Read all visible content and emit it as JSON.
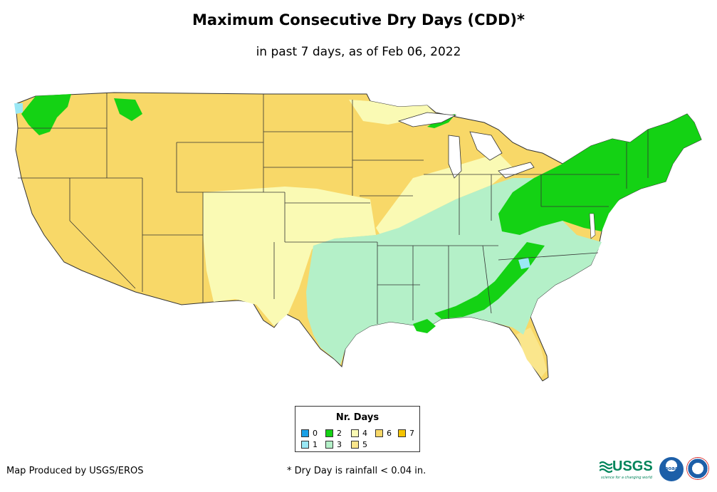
{
  "title": "Maximum Consecutive Dry Days (CDD)*",
  "subtitle": "in past 7 days, as of Feb 06, 2022",
  "legend": {
    "title": "Nr. Days",
    "items": [
      {
        "label": "0",
        "color": "#1aa0e6"
      },
      {
        "label": "1",
        "color": "#9ae8f5"
      },
      {
        "label": "2",
        "color": "#14d214"
      },
      {
        "label": "3",
        "color": "#b4f0c8"
      },
      {
        "label": "4",
        "color": "#fafab4"
      },
      {
        "label": "5",
        "color": "#fae68c"
      },
      {
        "label": "6",
        "color": "#f8d868"
      },
      {
        "label": "7",
        "color": "#f5c400"
      }
    ]
  },
  "footer": {
    "credit": "Map Produced by USGS/EROS",
    "note": "* Dry Day is rainfall < 0.04 in."
  },
  "logos": {
    "usgs": "USGS",
    "usgs_tagline": "science for a changing world",
    "noaa": "noaa"
  },
  "colors": {
    "border": "#333333",
    "background": "#ffffff"
  }
}
